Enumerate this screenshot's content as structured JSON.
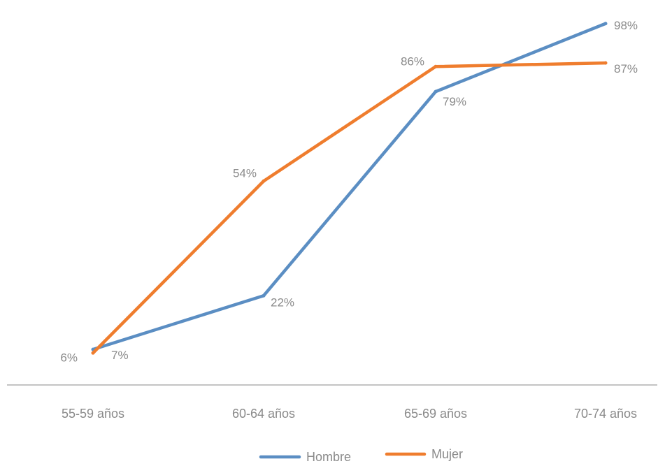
{
  "chart_data": {
    "type": "line",
    "categories": [
      "55-59 años",
      "60-64 años",
      "65-69 años",
      "70-74 años"
    ],
    "series": [
      {
        "name": "Hombre",
        "color": "#5b8ec3",
        "values": [
          7,
          22,
          79,
          98
        ],
        "labels": [
          "7%",
          "22%",
          "79%",
          "98%"
        ]
      },
      {
        "name": "Mujer",
        "color": "#ef7d2e",
        "values": [
          6,
          54,
          86,
          87
        ],
        "labels": [
          "6%",
          "54%",
          "86%",
          "87%"
        ]
      }
    ],
    "ylim": [
      0,
      100
    ],
    "grid": false,
    "legend_position": "bottom-center",
    "axis_color": "#b0b0b0",
    "text_color": "#8a8a8a"
  }
}
